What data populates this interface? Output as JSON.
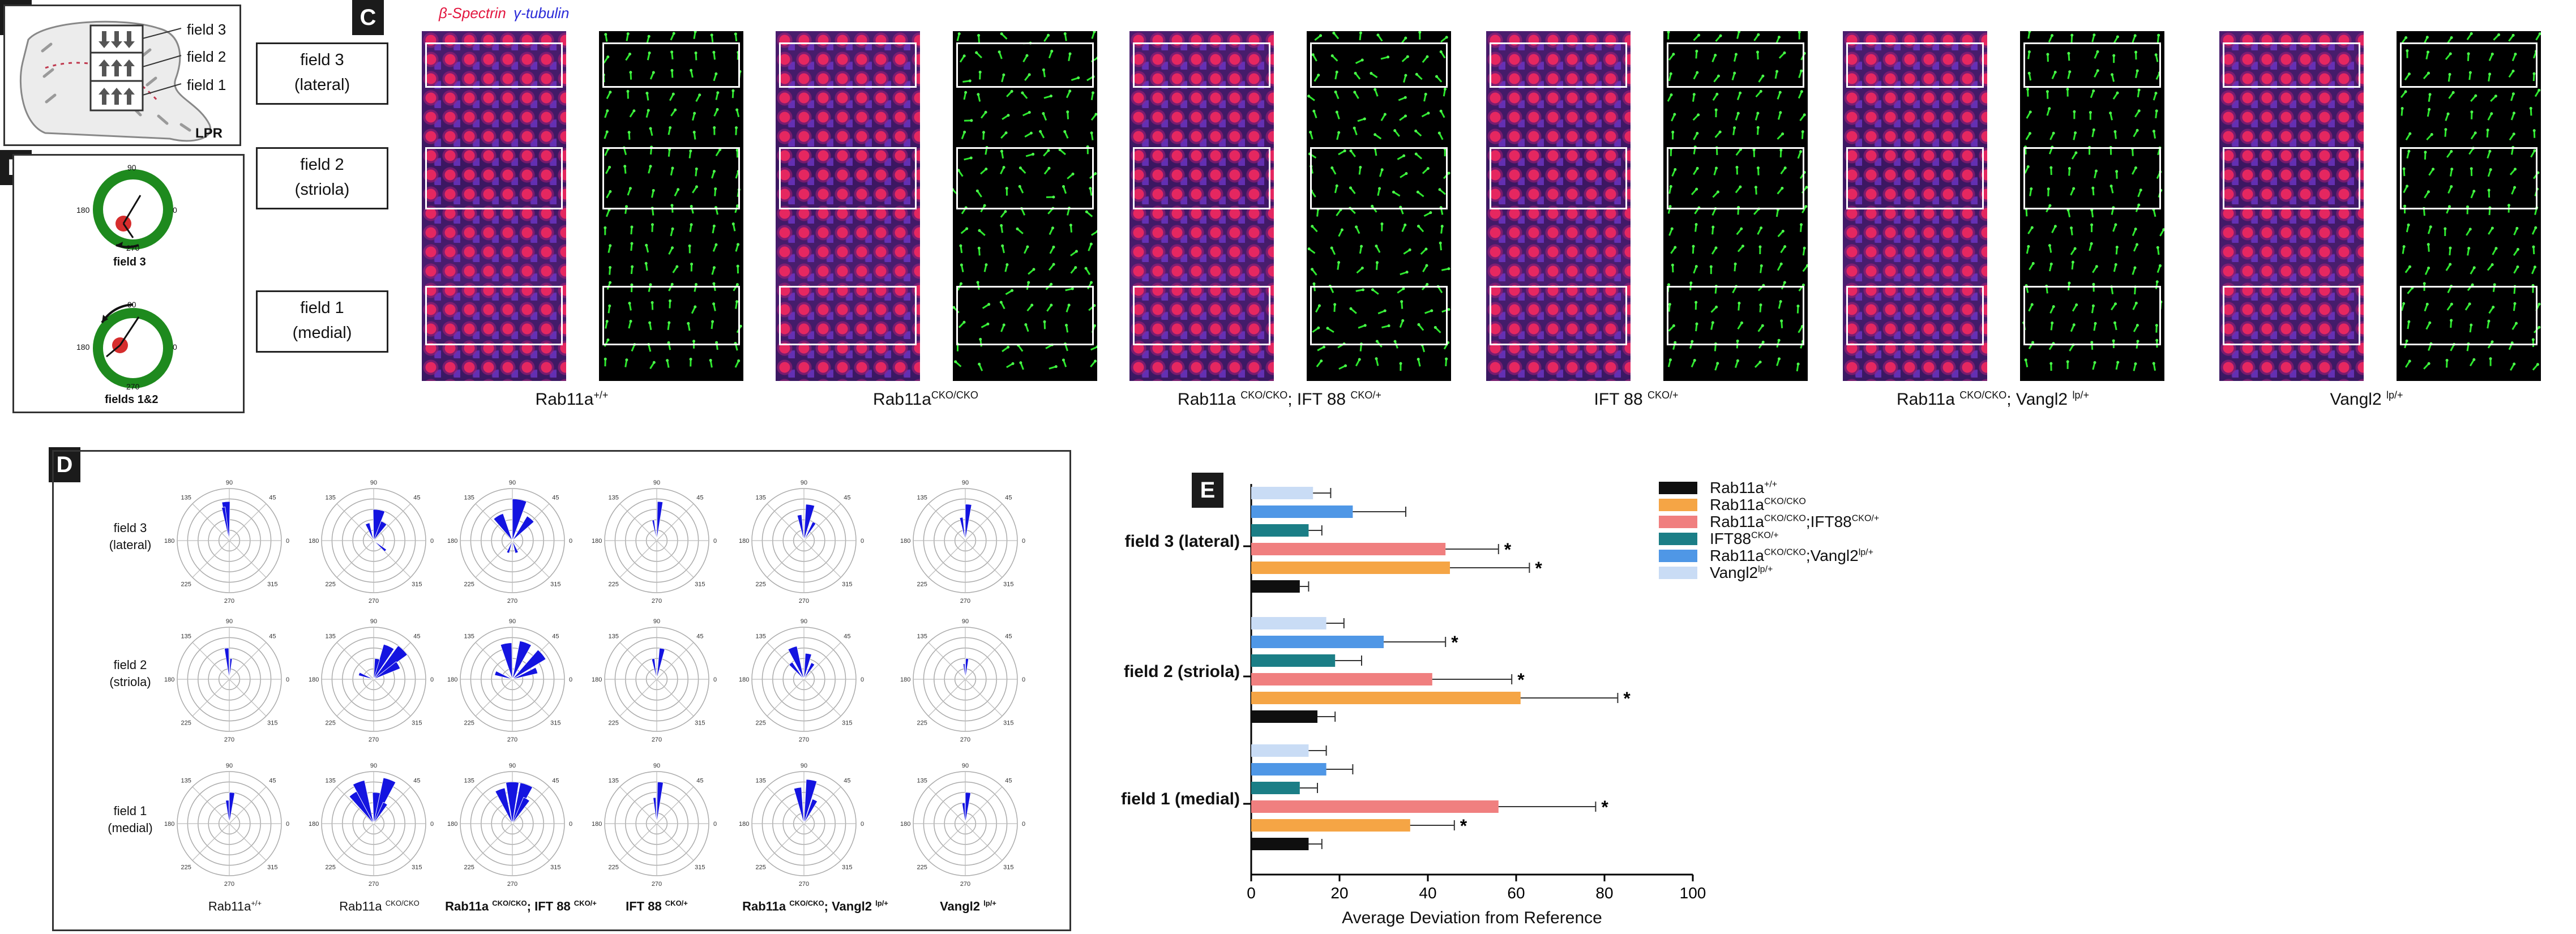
{
  "panels": {
    "A": "A",
    "B": "B",
    "C": "C",
    "D": "D",
    "E": "E"
  },
  "panelA": {
    "fields": [
      "field 3",
      "field 2",
      "field 1"
    ],
    "lpr": "LPR"
  },
  "panelB": {
    "top": {
      "ticks": [
        "90",
        "180",
        "0",
        "270"
      ],
      "label": "field 3"
    },
    "bottom": {
      "ticks": [
        "90",
        "180",
        "0",
        "270"
      ],
      "label": "fields 1&2"
    }
  },
  "fieldBoxes": [
    {
      "line1": "field 3",
      "line2": "(lateral)"
    },
    {
      "line1": "field 2",
      "line2": "(striola)"
    },
    {
      "line1": "field 1",
      "line2": "(medial)"
    }
  ],
  "panelC": {
    "stain_beta": "β-Spectrin",
    "stain_gamma": "γ-tubulin",
    "genotypes": [
      {
        "base": "Rab11a",
        "sup": "+/+",
        "rest": "",
        "rest_sup": ""
      },
      {
        "base": "Rab11a",
        "sup": "CKO/CKO",
        "rest": "",
        "rest_sup": ""
      },
      {
        "base": "Rab11a ",
        "sup": "CKO/CKO",
        "rest": "; IFT 88 ",
        "rest_sup": "CKO/+"
      },
      {
        "base": "IFT 88 ",
        "sup": "CKO/+",
        "rest": "",
        "rest_sup": ""
      },
      {
        "base": "Rab11a ",
        "sup": "CKO/CKO",
        "rest": "; Vangl2 ",
        "rest_sup": "lp/+"
      },
      {
        "base": "Vangl2 ",
        "sup": "lp/+",
        "rest": "",
        "rest_sup": ""
      }
    ]
  },
  "panelD": {
    "rows": [
      {
        "line1": "field 3",
        "line2": "(lateral)"
      },
      {
        "line1": "field 2",
        "line2": "(striola)"
      },
      {
        "line1": "field 1",
        "line2": "(medial)"
      }
    ],
    "angle_labels": [
      "90",
      "45",
      "0",
      "315",
      "270",
      "225",
      "180",
      "135"
    ],
    "genotypes": [
      {
        "base": "Rab11a",
        "sup": "+/+",
        "rest": "",
        "rest_sup": ""
      },
      {
        "base": "Rab11a ",
        "sup": "CKO/CKO",
        "rest": "",
        "rest_sup": ""
      },
      {
        "base": "Rab11a ",
        "sup": "CKO/CKO",
        "rest": "; IFT 88 ",
        "rest_sup": "CKO/+"
      },
      {
        "base": "IFT 88 ",
        "sup": "CKO/+",
        "rest": "",
        "rest_sup": ""
      },
      {
        "base": "Rab11a ",
        "sup": "CKO/CKO",
        "rest": "; Vangl2 ",
        "rest_sup": "lp/+"
      },
      {
        "base": "Vangl2 ",
        "sup": "lp/+",
        "rest": "",
        "rest_sup": ""
      }
    ]
  },
  "chart_data": {
    "type": "bar",
    "orientation": "horizontal",
    "xlabel": "Average Deviation from Reference",
    "xlim": [
      0,
      100
    ],
    "xticks": [
      "0",
      "20",
      "40",
      "60",
      "80",
      "100"
    ],
    "categories": [
      "field 3 (lateral)",
      "field 2 (striola)",
      "field 1 (medial)"
    ],
    "series": [
      {
        "name": "Vangl2",
        "sup": "lp/+",
        "color": "#c9dcf5",
        "values": [
          14,
          17,
          13
        ],
        "errors": [
          4,
          4,
          4
        ],
        "sig": [
          "",
          "",
          ""
        ]
      },
      {
        "name": "Rab11a",
        "sup": "CKO/CKO",
        "sup2": "lp/+",
        "name2": ";Vangl2",
        "color": "#4f97e6",
        "values": [
          23,
          30,
          17
        ],
        "errors": [
          12,
          14,
          6
        ],
        "sig": [
          "",
          "*",
          ""
        ]
      },
      {
        "name": "IFT88",
        "sup": "CKO/+",
        "color": "#1b7e86",
        "values": [
          13,
          19,
          11
        ],
        "errors": [
          3,
          6,
          4
        ],
        "sig": [
          "",
          "",
          ""
        ]
      },
      {
        "name": "Rab11a",
        "sup": "CKO/CKO",
        "name2": ";IFT88",
        "sup2": "CKO/+",
        "color": "#f07f7f",
        "values": [
          44,
          41,
          56
        ],
        "errors": [
          12,
          18,
          22
        ],
        "sig": [
          "*",
          "*",
          "*"
        ]
      },
      {
        "name": "Rab11a",
        "sup": "CKO/CKO",
        "color": "#f5a545",
        "values": [
          45,
          61,
          36
        ],
        "errors": [
          18,
          22,
          10
        ],
        "sig": [
          "*",
          "*",
          "*"
        ]
      },
      {
        "name": "Rab11a",
        "sup": "+/+",
        "color": "#0f0f0f",
        "values": [
          11,
          15,
          13
        ],
        "errors": [
          2,
          4,
          3
        ],
        "sig": [
          "",
          "",
          ""
        ]
      }
    ],
    "legend_order": [
      5,
      4,
      3,
      2,
      1,
      0
    ]
  }
}
